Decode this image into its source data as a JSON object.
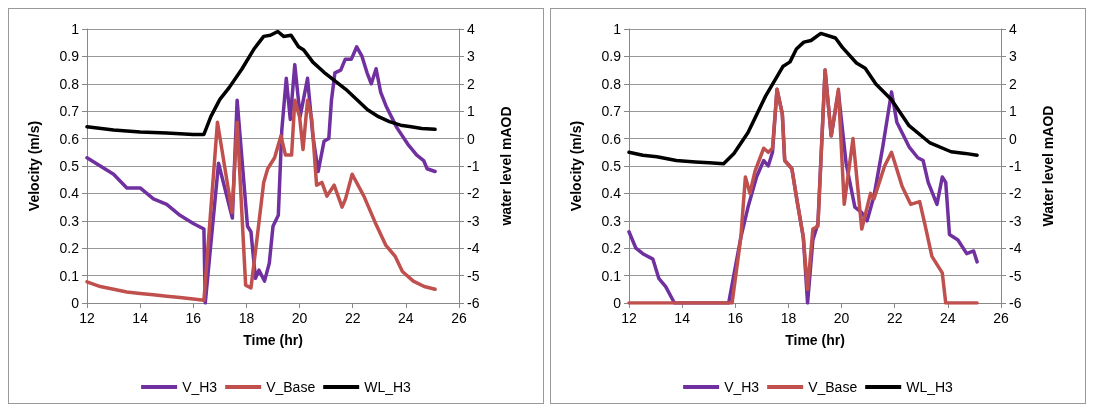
{
  "chart_data": [
    {
      "type": "line",
      "xlabel": "Time (hr)",
      "ylabel": "Velocity (m/s)",
      "y2label": "water level mAOD",
      "xlim": [
        12,
        26
      ],
      "xticks": [
        12,
        14,
        16,
        18,
        20,
        22,
        24,
        26
      ],
      "ylim": [
        0,
        1
      ],
      "yticks": [
        0,
        0.1,
        0.2,
        0.3,
        0.4,
        0.5,
        0.6,
        0.7,
        0.8,
        0.9,
        1
      ],
      "y2lim": [
        -6,
        4
      ],
      "y2ticks": [
        -6,
        -5,
        -4,
        -3,
        -2,
        -1,
        0,
        1,
        2,
        3,
        4
      ],
      "grid": "y",
      "legend": "bottom",
      "marker": "none",
      "line_style": "solid",
      "series": [
        {
          "name": "V_H3",
          "color": "#7030a0",
          "x": [
            12,
            12.5,
            13,
            13.5,
            14,
            14.5,
            15,
            15.5,
            16,
            16.4,
            16.45,
            16.95,
            17.47,
            17.65,
            18.04,
            18.17,
            18.34,
            18.47,
            18.68,
            18.86,
            19.0,
            19.2,
            19.33,
            19.5,
            19.65,
            19.82,
            20.02,
            20.3,
            20.5,
            20.7,
            20.92,
            21.1,
            21.2,
            21.33,
            21.55,
            21.72,
            21.95,
            22.15,
            22.35,
            22.54,
            22.7,
            22.88,
            23.05,
            23.25,
            23.66,
            24.07,
            24.41,
            24.67,
            24.8,
            25.1
          ],
          "values": [
            0.53,
            0.5,
            0.47,
            0.42,
            0.42,
            0.38,
            0.36,
            0.32,
            0.29,
            0.27,
            0.0,
            0.51,
            0.31,
            0.74,
            0.28,
            0.26,
            0.09,
            0.12,
            0.08,
            0.145,
            0.28,
            0.32,
            0.63,
            0.82,
            0.67,
            0.87,
            0.68,
            0.82,
            0.61,
            0.48,
            0.59,
            0.6,
            0.74,
            0.84,
            0.85,
            0.89,
            0.89,
            0.935,
            0.9,
            0.84,
            0.8,
            0.855,
            0.77,
            0.72,
            0.64,
            0.58,
            0.54,
            0.52,
            0.49,
            0.48
          ]
        },
        {
          "name": "V_Base",
          "color": "#c0504d",
          "x": [
            12,
            12.5,
            13,
            13.5,
            14,
            14.5,
            15,
            15.5,
            16,
            16.4,
            16.91,
            17.46,
            17.65,
            17.97,
            18.17,
            18.38,
            18.65,
            18.8,
            19.06,
            19.3,
            19.47,
            19.7,
            19.82,
            20.0,
            20.13,
            20.3,
            20.46,
            20.64,
            20.84,
            21.03,
            21.3,
            21.6,
            21.73,
            21.98,
            22.42,
            22.84,
            23.25,
            23.6,
            23.87,
            24.28,
            24.69,
            25.1
          ],
          "values": [
            0.077,
            0.06,
            0.05,
            0.04,
            0.035,
            0.03,
            0.025,
            0.02,
            0.015,
            0.01,
            0.66,
            0.33,
            0.66,
            0.065,
            0.055,
            0.22,
            0.44,
            0.49,
            0.53,
            0.61,
            0.54,
            0.54,
            0.74,
            0.68,
            0.56,
            0.74,
            0.67,
            0.43,
            0.44,
            0.39,
            0.43,
            0.35,
            0.38,
            0.47,
            0.39,
            0.295,
            0.21,
            0.17,
            0.115,
            0.08,
            0.06,
            0.05
          ]
        },
        {
          "name": "WL_H3",
          "color": "#000000",
          "axis": "y2",
          "x": [
            12,
            13,
            14,
            15,
            15.5,
            16,
            16.4,
            16.66,
            17.0,
            17.35,
            17.83,
            18.3,
            18.65,
            18.9,
            19.18,
            19.4,
            19.68,
            19.96,
            20.16,
            20.5,
            20.92,
            21.33,
            21.74,
            22.15,
            22.56,
            22.97,
            23.38,
            23.8,
            24.2,
            24.6,
            25.1
          ],
          "values": [
            0.43,
            0.31,
            0.24,
            0.2,
            0.18,
            0.15,
            0.15,
            0.8,
            1.43,
            1.86,
            2.54,
            3.29,
            3.73,
            3.77,
            3.91,
            3.73,
            3.77,
            3.35,
            3.23,
            2.79,
            2.42,
            2.11,
            1.8,
            1.43,
            1.05,
            0.8,
            0.62,
            0.49,
            0.43,
            0.37,
            0.34
          ]
        }
      ]
    },
    {
      "type": "line",
      "xlabel": "Time (hr)",
      "ylabel": "Velocity (m/s)",
      "y2label": "Water level mAOD",
      "xlim": [
        12,
        26
      ],
      "xticks": [
        12,
        14,
        16,
        18,
        20,
        22,
        24,
        26
      ],
      "ylim": [
        0,
        1
      ],
      "yticks": [
        0,
        0.1,
        0.2,
        0.3,
        0.4,
        0.5,
        0.6,
        0.7,
        0.8,
        0.9,
        1
      ],
      "y2lim": [
        -6,
        4
      ],
      "y2ticks": [
        -6,
        -5,
        -4,
        -3,
        -2,
        -1,
        0,
        1,
        2,
        3,
        4
      ],
      "grid": "y",
      "legend": "bottom",
      "marker": "none",
      "line_style": "solid",
      "series": [
        {
          "name": "V_H3",
          "color": "#7030a0",
          "x": [
            12,
            12.26,
            12.52,
            12.9,
            13.12,
            13.38,
            13.71,
            15.75,
            16.21,
            16.48,
            16.8,
            17.07,
            17.24,
            17.4,
            17.57,
            17.77,
            17.86,
            18.13,
            18.33,
            18.56,
            18.72,
            18.92,
            19.11,
            19.38,
            19.61,
            19.88,
            20.17,
            20.5,
            20.76,
            20.96,
            21.22,
            21.55,
            21.88,
            22.08,
            22.54,
            22.87,
            23.07,
            23.26,
            23.59,
            23.79,
            23.92,
            24.06,
            24.38,
            24.71,
            24.97,
            25.1
          ],
          "values": [
            0.26,
            0.2,
            0.18,
            0.16,
            0.09,
            0.06,
            0,
            0,
            0.24,
            0.35,
            0.46,
            0.52,
            0.5,
            0.55,
            0.78,
            0.69,
            0.52,
            0.49,
            0.37,
            0.24,
            0,
            0.23,
            0.29,
            0.85,
            0.61,
            0.77,
            0.51,
            0.35,
            0.33,
            0.3,
            0.39,
            0.57,
            0.77,
            0.66,
            0.57,
            0.53,
            0.52,
            0.44,
            0.36,
            0.46,
            0.44,
            0.25,
            0.23,
            0.18,
            0.19,
            0.15
          ]
        },
        {
          "name": "V_Base",
          "color": "#c0504d",
          "x": [
            12,
            15.88,
            16.21,
            16.38,
            16.55,
            16.74,
            17.07,
            17.24,
            17.4,
            17.57,
            17.77,
            17.86,
            18.13,
            18.33,
            18.56,
            18.72,
            18.92,
            19.11,
            19.38,
            19.61,
            19.88,
            20.1,
            20.43,
            20.76,
            21.09,
            21.22,
            21.62,
            21.88,
            22.28,
            22.6,
            22.94,
            23.13,
            23.4,
            23.79,
            23.92,
            25.1
          ],
          "values": [
            0,
            0,
            0.24,
            0.46,
            0.4,
            0.48,
            0.565,
            0.55,
            0.565,
            0.78,
            0.69,
            0.52,
            0.49,
            0.37,
            0.24,
            0.05,
            0.27,
            0.28,
            0.85,
            0.61,
            0.78,
            0.36,
            0.6,
            0.27,
            0.4,
            0.38,
            0.5,
            0.55,
            0.425,
            0.36,
            0.37,
            0.29,
            0.17,
            0.11,
            0,
            0
          ]
        },
        {
          "name": "WL_H3",
          "color": "#000000",
          "axis": "y2",
          "x": [
            12,
            12.52,
            13.05,
            13.78,
            14.5,
            15.02,
            15.56,
            15.95,
            16.48,
            17.14,
            17.79,
            18.06,
            18.3,
            18.58,
            18.85,
            19.22,
            19.77,
            20.03,
            20.56,
            20.89,
            21.29,
            21.88,
            22.54,
            23.33,
            24.12,
            24.65,
            25.1
          ],
          "values": [
            -0.5,
            -0.61,
            -0.66,
            -0.8,
            -0.85,
            -0.88,
            -0.92,
            -0.54,
            0.22,
            1.55,
            2.63,
            2.8,
            3.27,
            3.52,
            3.58,
            3.84,
            3.67,
            3.33,
            2.76,
            2.57,
            1.99,
            1.42,
            0.47,
            -0.16,
            -0.48,
            -0.54,
            -0.61
          ]
        }
      ]
    }
  ]
}
